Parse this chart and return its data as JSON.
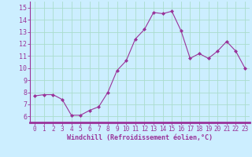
{
  "x": [
    0,
    1,
    2,
    3,
    4,
    5,
    6,
    7,
    8,
    9,
    10,
    11,
    12,
    13,
    14,
    15,
    16,
    17,
    18,
    19,
    20,
    21,
    22,
    23
  ],
  "y": [
    7.7,
    7.8,
    7.8,
    7.4,
    6.1,
    6.1,
    6.5,
    6.8,
    8.0,
    9.8,
    10.6,
    12.4,
    13.2,
    14.6,
    14.5,
    14.7,
    13.1,
    10.8,
    11.2,
    10.8,
    11.4,
    12.2,
    11.4,
    10.0
  ],
  "line_color": "#993399",
  "marker": "D",
  "marker_size": 2.0,
  "bg_color": "#cceeff",
  "grid_color": "#aaddcc",
  "xlabel": "Windchill (Refroidissement éolien,°C)",
  "xlim": [
    -0.5,
    23.5
  ],
  "ylim": [
    5.5,
    15.5
  ],
  "yticks": [
    6,
    7,
    8,
    9,
    10,
    11,
    12,
    13,
    14,
    15
  ],
  "xticks": [
    0,
    1,
    2,
    3,
    4,
    5,
    6,
    7,
    8,
    9,
    10,
    11,
    12,
    13,
    14,
    15,
    16,
    17,
    18,
    19,
    20,
    21,
    22,
    23
  ],
  "tick_color": "#993399",
  "label_color": "#993399",
  "spine_color": "#993399",
  "axis_bg": "#cceeff"
}
